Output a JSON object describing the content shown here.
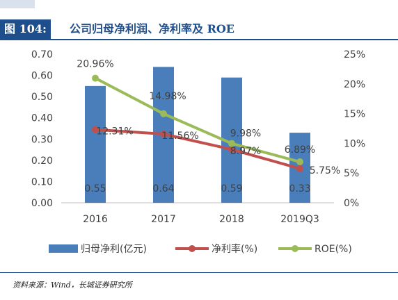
{
  "header": {
    "figure_label": "图 104:",
    "title": "公司归母净利润、净利率及 ROE"
  },
  "source": "资料来源：Wind，长城证券研究所",
  "chart_data": {
    "type": "bar",
    "categories": [
      "2016",
      "2017",
      "2018",
      "2019Q3"
    ],
    "left_axis": {
      "ylim": [
        0,
        0.7
      ],
      "ticks": [
        "0.00",
        "0.10",
        "0.20",
        "0.30",
        "0.40",
        "0.50",
        "0.60",
        "0.70"
      ]
    },
    "right_axis": {
      "ylim": [
        0,
        25
      ],
      "ticks": [
        "0%",
        "5%",
        "10%",
        "15%",
        "20%",
        "25%"
      ]
    },
    "series": [
      {
        "name": "归母净利(亿元)",
        "type": "bar",
        "axis": "left",
        "color": "#4a7ebb",
        "values": [
          0.55,
          0.64,
          0.59,
          0.33
        ],
        "labels": [
          "0.55",
          "0.64",
          "0.59",
          "0.33"
        ]
      },
      {
        "name": "净利率(%)",
        "type": "line",
        "axis": "right",
        "color": "#c0504d",
        "values": [
          12.31,
          11.56,
          8.97,
          5.75
        ],
        "labels": [
          "12.31%",
          "11.56%",
          "8.97%",
          "5.75%"
        ]
      },
      {
        "name": "ROE(%)",
        "type": "line",
        "axis": "right",
        "color": "#9bbb59",
        "values": [
          20.96,
          14.98,
          9.98,
          6.89
        ],
        "labels": [
          "20.96%",
          "14.98%",
          "9.98%",
          "6.89%"
        ]
      }
    ],
    "legend_position": "bottom",
    "grid": false
  }
}
